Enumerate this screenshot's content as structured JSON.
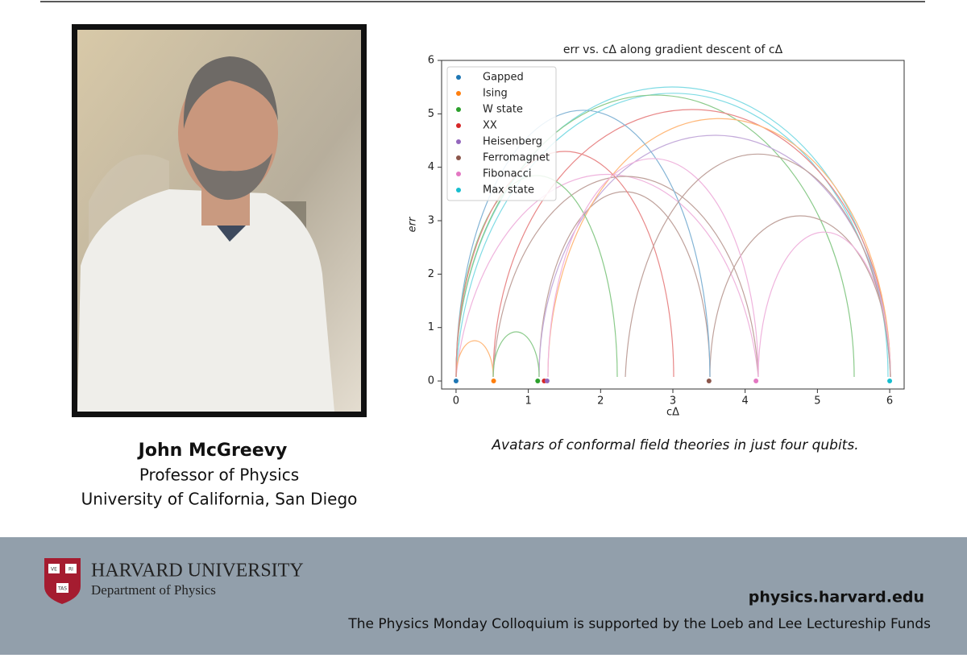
{
  "speaker": {
    "name": "John McGreevy",
    "title": "Professor of Physics",
    "affiliation": "University of California, San Diego"
  },
  "caption": "Avatars of conformal field theories in just four qubits.",
  "chart_data": {
    "type": "scatter",
    "title": "err vs. cΔ along gradient descent of cΔ",
    "x_label": "cΔ",
    "y_label": "err",
    "series": [
      {
        "name": "Gapped",
        "color": "#1f77b4",
        "x": [
          0
        ],
        "values": [
          0
        ]
      },
      {
        "name": "Ising",
        "color": "#ff7f0e",
        "x": [
          0.52
        ],
        "values": [
          0
        ]
      },
      {
        "name": "W state",
        "color": "#2ca02c",
        "x": [
          1.13
        ],
        "values": [
          0
        ]
      },
      {
        "name": "XX",
        "color": "#d62728",
        "x": [
          1.22
        ],
        "values": [
          0
        ]
      },
      {
        "name": "Heisenberg",
        "color": "#9467bd",
        "x": [
          1.26
        ],
        "values": [
          0
        ]
      },
      {
        "name": "Ferromagnet",
        "color": "#8c564b",
        "x": [
          3.5
        ],
        "values": [
          0
        ]
      },
      {
        "name": "Fibonacci",
        "color": "#e377c2",
        "x": [
          4.15
        ],
        "values": [
          0
        ]
      },
      {
        "name": "Max state",
        "color": "#17becf",
        "x": [
          6
        ],
        "values": [
          0
        ]
      }
    ],
    "xlim": [
      -0.2,
      6.2
    ],
    "ylim": [
      -0.15,
      6
    ],
    "xticks": [
      0,
      1,
      2,
      3,
      4,
      5,
      6
    ],
    "yticks": [
      0,
      1,
      2,
      3,
      4,
      5,
      6
    ],
    "legend": "upper left"
  },
  "footer": {
    "shield": [
      "VE",
      "RI",
      "TAS"
    ],
    "institution": "HARVARD UNIVERSITY",
    "department": "Department of Physics",
    "website": "physics.harvard.edu",
    "support": "The Physics Monday Colloquium is supported by the Loeb and Lee Lectureship Funds"
  }
}
